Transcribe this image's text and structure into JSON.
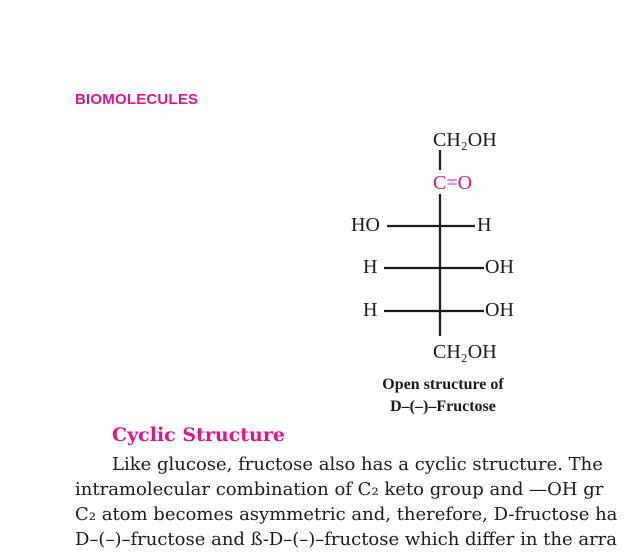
{
  "header": {
    "running_title": "BIOMOLECULES"
  },
  "structure": {
    "top": "CH₂OH",
    "carbonyl": "C=O",
    "row3_left": "HO",
    "row3_right": "H",
    "row4_left": "H",
    "row4_right": "OH",
    "row5_left": "H",
    "row5_right": "OH",
    "bottom": "CH₂OH",
    "accent_color": "#e0148c"
  },
  "caption": {
    "line1": "Open structure of",
    "line2": "D–(–)–Fructose"
  },
  "section": {
    "title": "Cyclic Structure",
    "lines": [
      "Like glucose, fructose also has a cyclic structure. The",
      "intramolecular combination of C₂ keto group and —OH gr",
      "C₂ atom becomes asymmetric and, therefore, D-fructose ha",
      "D–(–)–fructose and ß-D–(–)–fructose which differ in the arra"
    ]
  }
}
